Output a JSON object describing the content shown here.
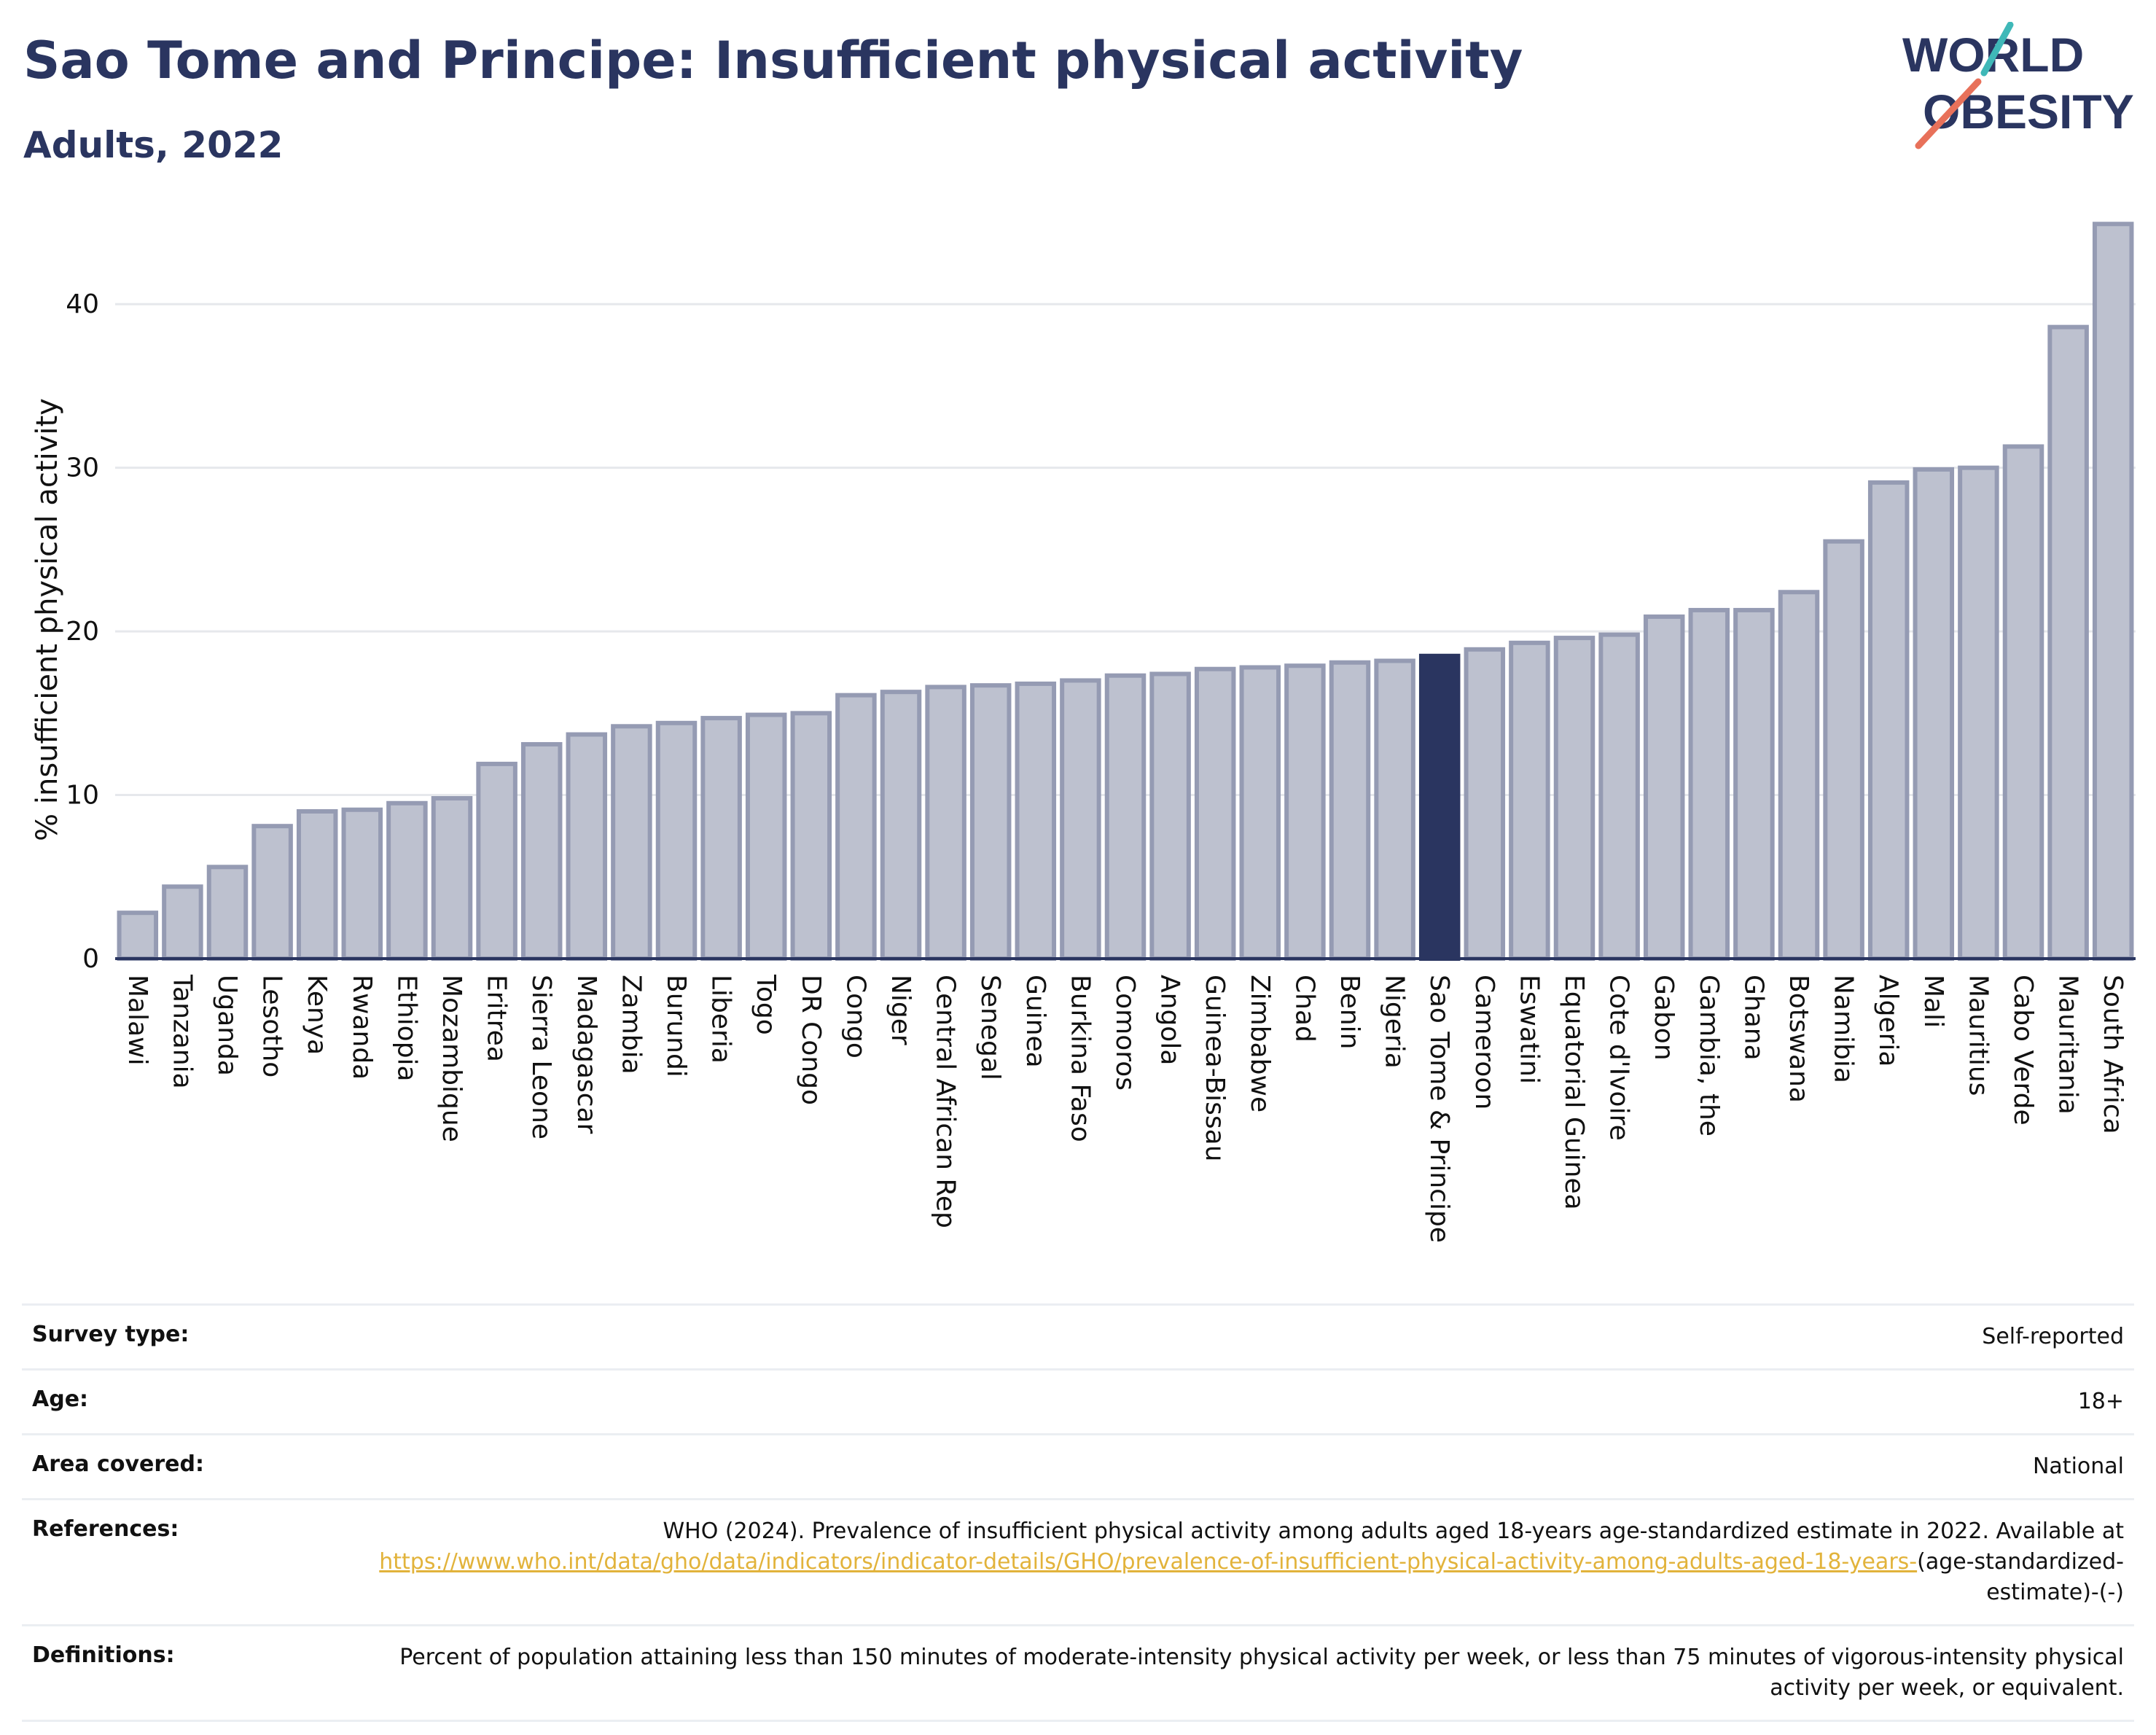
{
  "header": {
    "title": "Sao Tome and Principe: Insufficient physical activity",
    "subtitle": "Adults, 2022"
  },
  "logo": {
    "line1": "WORLD",
    "line2": "OBESITY",
    "colors": {
      "navy": "#2a3560",
      "teal": "#3fb8b8",
      "coral": "#e8715a"
    }
  },
  "colors": {
    "bar_default": "#bdc1cf",
    "bar_border": "#959bb3",
    "bar_highlight": "#2a3560",
    "grid": "#e6e8ec",
    "axis": "#2a3560",
    "link": "#e2b33b"
  },
  "chart_data": {
    "type": "bar",
    "ylabel": "% insufficient physical activity",
    "xlabel": "",
    "ylim": [
      0,
      45
    ],
    "yticks": [
      0,
      10,
      20,
      30,
      40
    ],
    "grid": true,
    "highlight": "Sao Tome & Principe",
    "categories": [
      "Malawi",
      "Tanzania",
      "Uganda",
      "Lesotho",
      "Kenya",
      "Rwanda",
      "Ethiopia",
      "Mozambique",
      "Eritrea",
      "Sierra Leone",
      "Madagascar",
      "Zambia",
      "Burundi",
      "Liberia",
      "Togo",
      "DR Congo",
      "Congo",
      "Niger",
      "Central African Rep",
      "Senegal",
      "Guinea",
      "Burkina Faso",
      "Comoros",
      "Angola",
      "Guinea-Bissau",
      "Zimbabwe",
      "Chad",
      "Benin",
      "Nigeria",
      "Sao Tome & Principe",
      "Cameroon",
      "Eswatini",
      "Equatorial Guinea",
      "Cote d'Ivoire",
      "Gabon",
      "Gambia, the",
      "Ghana",
      "Botswana",
      "Namibia",
      "Algeria",
      "Mali",
      "Mauritius",
      "Cabo Verde",
      "Mauritania",
      "South Africa"
    ],
    "values": [
      2.8,
      4.4,
      5.6,
      8.1,
      9.0,
      9.1,
      9.5,
      9.8,
      11.9,
      13.1,
      13.7,
      14.2,
      14.4,
      14.7,
      14.9,
      15.0,
      16.1,
      16.3,
      16.6,
      16.7,
      16.8,
      17.0,
      17.3,
      17.4,
      17.7,
      17.8,
      17.9,
      18.1,
      18.2,
      18.5,
      18.9,
      19.3,
      19.6,
      19.8,
      20.9,
      21.3,
      21.3,
      22.4,
      25.5,
      29.1,
      29.9,
      30.0,
      31.3,
      38.6,
      44.9
    ]
  },
  "metadata": [
    {
      "key": "Survey type:",
      "value": "Self-reported"
    },
    {
      "key": "Age:",
      "value": "18+"
    },
    {
      "key": "Area covered:",
      "value": "National"
    },
    {
      "key": "References:",
      "value": "WHO (2024). Prevalence of insufficient physical activity among adults aged 18-years age-standardized estimate in 2022. Available at",
      "link": "https://www.who.int/data/gho/data/indicators/indicator-details/GHO/prevalence-of-insufficient-physical-activity-among-adults-aged-18-years-",
      "suffix": "(age-standardized-estimate)-(-)"
    },
    {
      "key": "Definitions:",
      "value": "Percent of population attaining less than 150 minutes of moderate-intensity physical activity per week, or less than 75 minutes of vigorous-intensity physical activity per week, or equivalent."
    }
  ]
}
